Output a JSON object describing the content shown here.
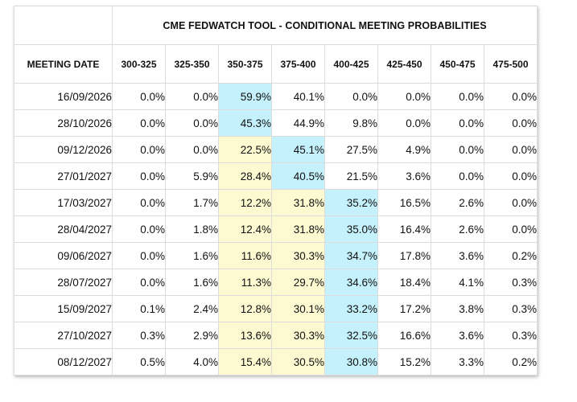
{
  "title": "CME FEDWATCH TOOL - CONDITIONAL MEETING PROBABILITIES",
  "columns": [
    "MEETING DATE",
    "300-325",
    "325-350",
    "350-375",
    "375-400",
    "400-425",
    "425-450",
    "450-475",
    "475-500"
  ],
  "colors": {
    "highlight_blue": "#c4f1fb",
    "highlight_yellow": "#fdfad1",
    "border": "#dcdcdc"
  },
  "rows": [
    {
      "date": "16/09/2026",
      "values": [
        "0.0%",
        "0.0%",
        "59.9%",
        "40.1%",
        "0.0%",
        "0.0%",
        "0.0%",
        "0.0%"
      ],
      "highlight": [
        "",
        "",
        "blue",
        "",
        "",
        "",
        "",
        ""
      ]
    },
    {
      "date": "28/10/2026",
      "values": [
        "0.0%",
        "0.0%",
        "45.3%",
        "44.9%",
        "9.8%",
        "0.0%",
        "0.0%",
        "0.0%"
      ],
      "highlight": [
        "",
        "",
        "blue",
        "",
        "",
        "",
        "",
        ""
      ]
    },
    {
      "date": "09/12/2026",
      "values": [
        "0.0%",
        "0.0%",
        "22.5%",
        "45.1%",
        "27.5%",
        "4.9%",
        "0.0%",
        "0.0%"
      ],
      "highlight": [
        "",
        "",
        "yellow",
        "blue",
        "",
        "",
        "",
        ""
      ]
    },
    {
      "date": "27/01/2027",
      "values": [
        "0.0%",
        "5.9%",
        "28.4%",
        "40.5%",
        "21.5%",
        "3.6%",
        "0.0%",
        "0.0%"
      ],
      "highlight": [
        "",
        "",
        "yellow",
        "blue",
        "",
        "",
        "",
        ""
      ]
    },
    {
      "date": "17/03/2027",
      "values": [
        "0.0%",
        "1.7%",
        "12.2%",
        "31.8%",
        "35.2%",
        "16.5%",
        "2.6%",
        "0.0%"
      ],
      "highlight": [
        "",
        "",
        "yellow",
        "yellow",
        "blue",
        "",
        "",
        ""
      ]
    },
    {
      "date": "28/04/2027",
      "values": [
        "0.0%",
        "1.8%",
        "12.4%",
        "31.8%",
        "35.0%",
        "16.4%",
        "2.6%",
        "0.0%"
      ],
      "highlight": [
        "",
        "",
        "yellow",
        "yellow",
        "blue",
        "",
        "",
        ""
      ]
    },
    {
      "date": "09/06/2027",
      "values": [
        "0.0%",
        "1.6%",
        "11.6%",
        "30.3%",
        "34.7%",
        "17.8%",
        "3.6%",
        "0.2%"
      ],
      "highlight": [
        "",
        "",
        "yellow",
        "yellow",
        "blue",
        "",
        "",
        ""
      ]
    },
    {
      "date": "28/07/2027",
      "values": [
        "0.0%",
        "1.6%",
        "11.3%",
        "29.7%",
        "34.6%",
        "18.4%",
        "4.1%",
        "0.3%"
      ],
      "highlight": [
        "",
        "",
        "yellow",
        "yellow",
        "blue",
        "",
        "",
        ""
      ]
    },
    {
      "date": "15/09/2027",
      "values": [
        "0.1%",
        "2.4%",
        "12.8%",
        "30.1%",
        "33.2%",
        "17.2%",
        "3.8%",
        "0.3%"
      ],
      "highlight": [
        "",
        "",
        "yellow",
        "yellow",
        "blue",
        "",
        "",
        ""
      ]
    },
    {
      "date": "27/10/2027",
      "values": [
        "0.3%",
        "2.9%",
        "13.6%",
        "30.3%",
        "32.5%",
        "16.6%",
        "3.6%",
        "0.3%"
      ],
      "highlight": [
        "",
        "",
        "yellow",
        "yellow",
        "blue",
        "",
        "",
        ""
      ]
    },
    {
      "date": "08/12/2027",
      "values": [
        "0.5%",
        "4.0%",
        "15.4%",
        "30.5%",
        "30.8%",
        "15.2%",
        "3.3%",
        "0.2%"
      ],
      "highlight": [
        "",
        "",
        "yellow",
        "yellow",
        "blue",
        "",
        "",
        ""
      ]
    }
  ]
}
